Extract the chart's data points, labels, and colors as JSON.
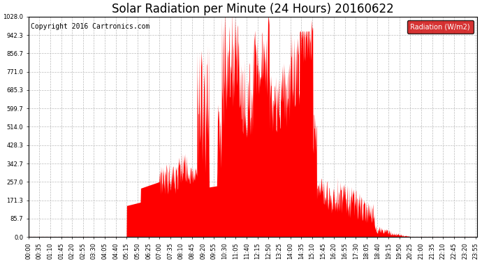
{
  "title": "Solar Radiation per Minute (24 Hours) 20160622",
  "copyright": "Copyright 2016 Cartronics.com",
  "legend_label": "Radiation (W/m2)",
  "y_ticks": [
    0.0,
    85.7,
    171.3,
    257.0,
    342.7,
    428.3,
    514.0,
    599.7,
    685.3,
    771.0,
    856.7,
    942.3,
    1028.0
  ],
  "y_max": 1028.0,
  "y_min": 0.0,
  "fill_color": "#ff0000",
  "dashed_line_color": "#ff0000",
  "background_color": "#ffffff",
  "grid_color": "#bbbbbb",
  "title_fontsize": 12,
  "copyright_fontsize": 7,
  "tick_fontsize": 6,
  "legend_bg_color": "#cc0000",
  "legend_text_color": "#ffffff",
  "x_tick_step_minutes": 35,
  "sunrise_minute": 315,
  "sunset_minute": 1232,
  "peak1_minute": 770,
  "peak1_value": 1028.0,
  "peak2_minute": 908,
  "peak2_value": 1014.0
}
